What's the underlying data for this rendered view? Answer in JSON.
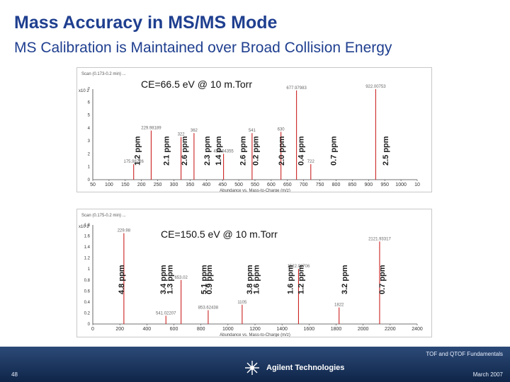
{
  "slide": {
    "title": "Mass Accuracy in MS/MS Mode",
    "subtitle": "MS Calibration is Maintained over Broad Collision Energy",
    "footer_text": "TOF and QTOF Fundamentals",
    "page_number": "48",
    "date": "March 2007",
    "logo_text": "Agilent Technologies",
    "colors": {
      "title": "#1f3f8f",
      "peaks": "#cc2222",
      "footer": "#1f3a66"
    }
  },
  "chart_data": [
    {
      "type": "bar",
      "title": "CE=66.5 eV @ 10 m.Torr",
      "header": "Scan (0.173-0.2 min) ...",
      "y_scale_label": "x10 2",
      "xlabel": "Abundance vs. Mass-to-Charge (m/z)",
      "xlim": [
        50,
        1050
      ],
      "ylim": [
        0,
        7
      ],
      "x_ticks": [
        "50",
        "100",
        "150",
        "200",
        "250",
        "300",
        "350",
        "400",
        "450",
        "500",
        "550",
        "600",
        "650",
        "700",
        "750",
        "800",
        "850",
        "900",
        "950",
        "1000",
        "10"
      ],
      "y_ticks": [
        "0",
        "1",
        "2",
        "3",
        "4",
        "5",
        "6",
        "7"
      ],
      "peaks": [
        {
          "x": 175.98726,
          "y": 1.2,
          "label": "175.98726"
        },
        {
          "x": 229.98189,
          "y": 3.8,
          "label": "229.98189"
        },
        {
          "x": 322.0,
          "y": 3.3,
          "label": "322"
        },
        {
          "x": 362.0,
          "y": 3.6,
          "label": "362"
        },
        {
          "x": 453.04355,
          "y": 2.0,
          "label": "453.04355"
        },
        {
          "x": 541.0,
          "y": 3.6,
          "label": "541"
        },
        {
          "x": 630.0,
          "y": 3.7,
          "label": "630"
        },
        {
          "x": 677.97983,
          "y": 6.9,
          "label": "677.97983"
        },
        {
          "x": 722.0,
          "y": 1.2,
          "label": "722"
        },
        {
          "x": 922.00753,
          "y": 7.0,
          "label": "922.00753"
        }
      ],
      "ppm_annotations": [
        {
          "x": 195,
          "label": "1.2 ppm"
        },
        {
          "x": 285,
          "label": "2.1 ppm"
        },
        {
          "x": 340,
          "label": "2.6 ppm"
        },
        {
          "x": 410,
          "label": "2.3 ppm"
        },
        {
          "x": 445,
          "label": "1.4 ppm"
        },
        {
          "x": 520,
          "label": "2.6 ppm"
        },
        {
          "x": 560,
          "label": "0.2 ppm"
        },
        {
          "x": 640,
          "label": "2.0 ppm"
        },
        {
          "x": 700,
          "label": "0.4 ppm"
        },
        {
          "x": 800,
          "label": "0.7 ppm"
        },
        {
          "x": 960,
          "label": "2.5 ppm"
        }
      ]
    },
    {
      "type": "bar",
      "title": "CE=150.5 eV @ 10 m.Torr",
      "header": "Scan (0.175-0.2 min) ...",
      "y_scale_label": "x10 2",
      "xlabel": "Abundance vs. Mass-to-Charge (m/z)",
      "xlim": [
        0,
        2400
      ],
      "ylim": [
        0,
        1.8
      ],
      "x_ticks": [
        "0",
        "200",
        "400",
        "600",
        "800",
        "1000",
        "1200",
        "1400",
        "1600",
        "1800",
        "2000",
        "2200",
        "2400"
      ],
      "y_ticks": [
        "0",
        "0.2",
        "0.4",
        "0.6",
        "0.8",
        "1",
        "1.2",
        "1.4",
        "1.6",
        "1.8"
      ],
      "peaks": [
        {
          "x": 229.98,
          "y": 1.65,
          "label": "229.98"
        },
        {
          "x": 541.02207,
          "y": 0.15,
          "label": "541.02207"
        },
        {
          "x": 653.02,
          "y": 0.8,
          "label": "653.02"
        },
        {
          "x": 853.62438,
          "y": 0.25,
          "label": "853.62438"
        },
        {
          "x": 1105.0,
          "y": 0.35,
          "label": "1105"
        },
        {
          "x": 1522.02706,
          "y": 1.0,
          "label": "1522.02706"
        },
        {
          "x": 1822.0,
          "y": 0.3,
          "label": "1822"
        },
        {
          "x": 2121.93317,
          "y": 1.5,
          "label": "2121.93317"
        }
      ],
      "ppm_annotations": [
        {
          "x": 230,
          "label": "4.8 ppm"
        },
        {
          "x": 540,
          "label": "3.4 ppm"
        },
        {
          "x": 590,
          "label": "1.3 ppm"
        },
        {
          "x": 840,
          "label": "5.1 ppm"
        },
        {
          "x": 880,
          "label": "0.9 ppm"
        },
        {
          "x": 1180,
          "label": "3.8 ppm"
        },
        {
          "x": 1230,
          "label": "1.6 ppm"
        },
        {
          "x": 1480,
          "label": "1.6 ppm"
        },
        {
          "x": 1560,
          "label": "1.2 ppm"
        },
        {
          "x": 1880,
          "label": "3.2 ppm"
        },
        {
          "x": 2160,
          "label": "0.7 ppm"
        }
      ]
    }
  ]
}
